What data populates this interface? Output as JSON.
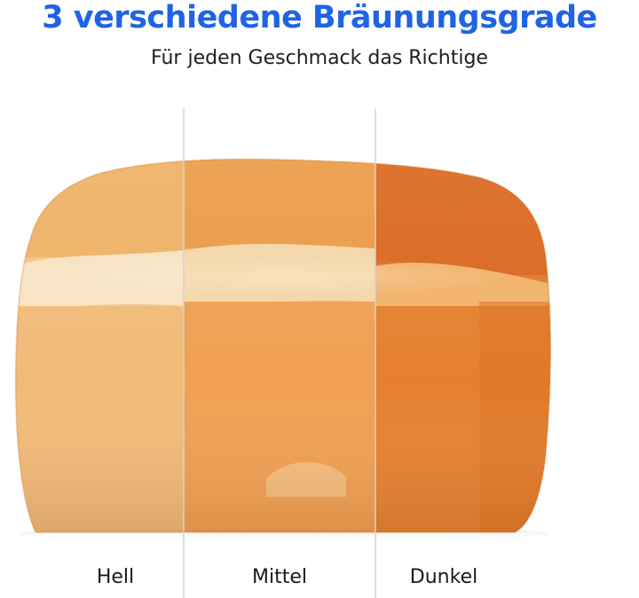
{
  "header": {
    "title": "3 verschiedene Bräunungsgrade",
    "subtitle": "Für jeden Geschmack das Richtige"
  },
  "sections": [
    {
      "label": "Hell",
      "crust_color": "#f1b165",
      "crumb_color": "#f3c891"
    },
    {
      "label": "Mittel",
      "crust_color": "#ee9f4a",
      "crumb_color": "#f2a45a"
    },
    {
      "label": "Dunkel",
      "crust_color": "#dc6d21",
      "crumb_color": "#e88a3a"
    }
  ],
  "colors": {
    "title": "#1f63e6",
    "divider": "#d8d2cc"
  }
}
